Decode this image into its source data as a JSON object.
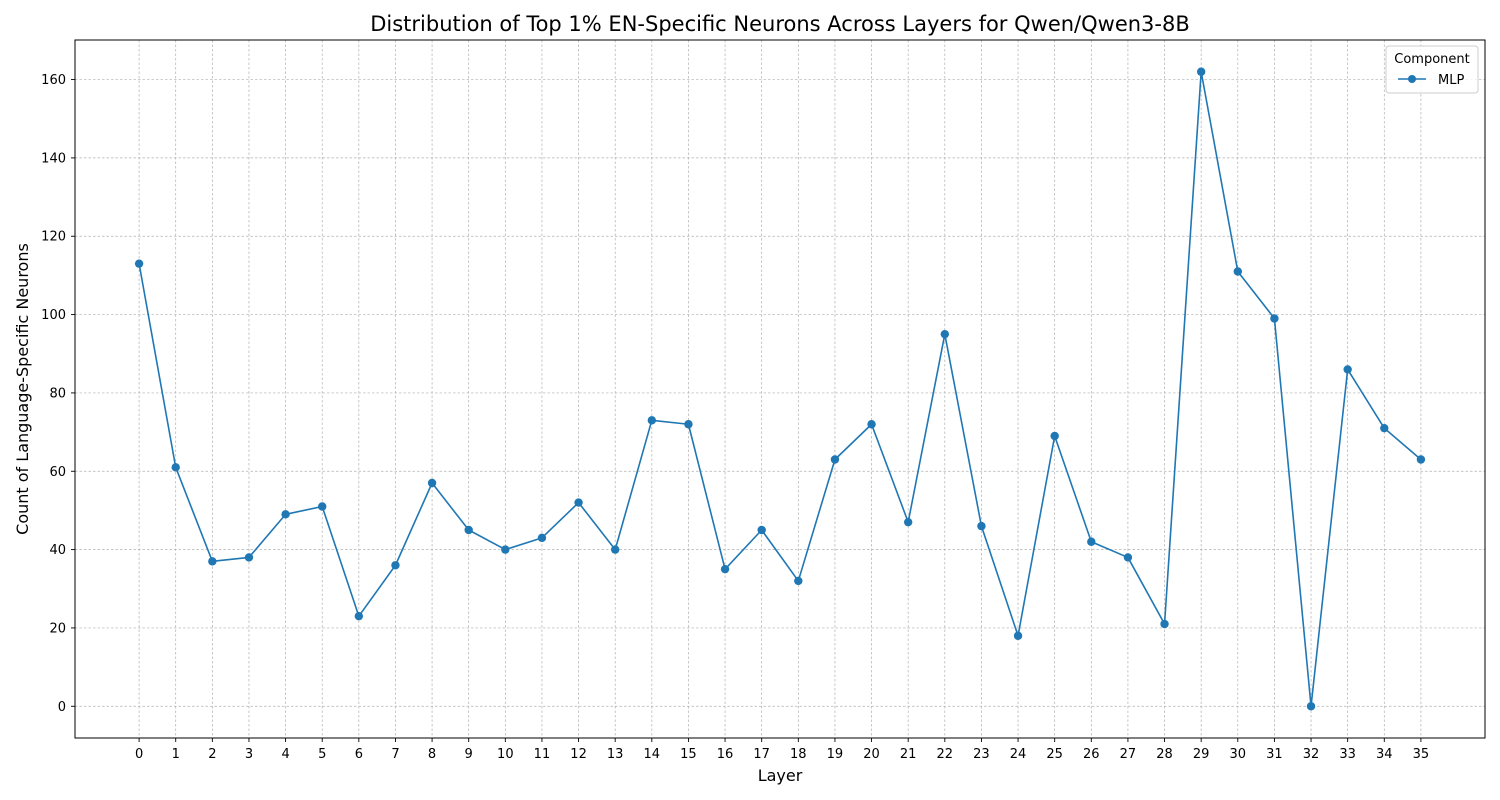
{
  "chart_data": {
    "type": "line",
    "title": "Distribution of Top 1% EN-Specific Neurons Across Layers for Qwen/Qwen3-8B",
    "xlabel": "Layer",
    "ylabel": "Count of Language-Specific Neurons",
    "x": [
      0,
      1,
      2,
      3,
      4,
      5,
      6,
      7,
      8,
      9,
      10,
      11,
      12,
      13,
      14,
      15,
      16,
      17,
      18,
      19,
      20,
      21,
      22,
      23,
      24,
      25,
      26,
      27,
      28,
      29,
      30,
      31,
      32,
      33,
      34,
      35
    ],
    "series": [
      {
        "name": "MLP",
        "values": [
          113,
          61,
          37,
          38,
          49,
          51,
          23,
          36,
          57,
          45,
          40,
          43,
          52,
          40,
          73,
          72,
          35,
          45,
          32,
          63,
          72,
          47,
          95,
          46,
          18,
          69,
          42,
          38,
          21,
          162,
          111,
          99,
          0,
          86,
          71,
          63
        ],
        "color": "#1f77b4",
        "marker": "circle"
      }
    ],
    "xlim": [
      -1.75,
      36.75
    ],
    "ylim": [
      -8.1,
      170.1
    ],
    "yticks": [
      0,
      20,
      40,
      60,
      80,
      100,
      120,
      140,
      160
    ],
    "grid": true,
    "legend": {
      "title": "Component",
      "position": "top-right"
    }
  }
}
